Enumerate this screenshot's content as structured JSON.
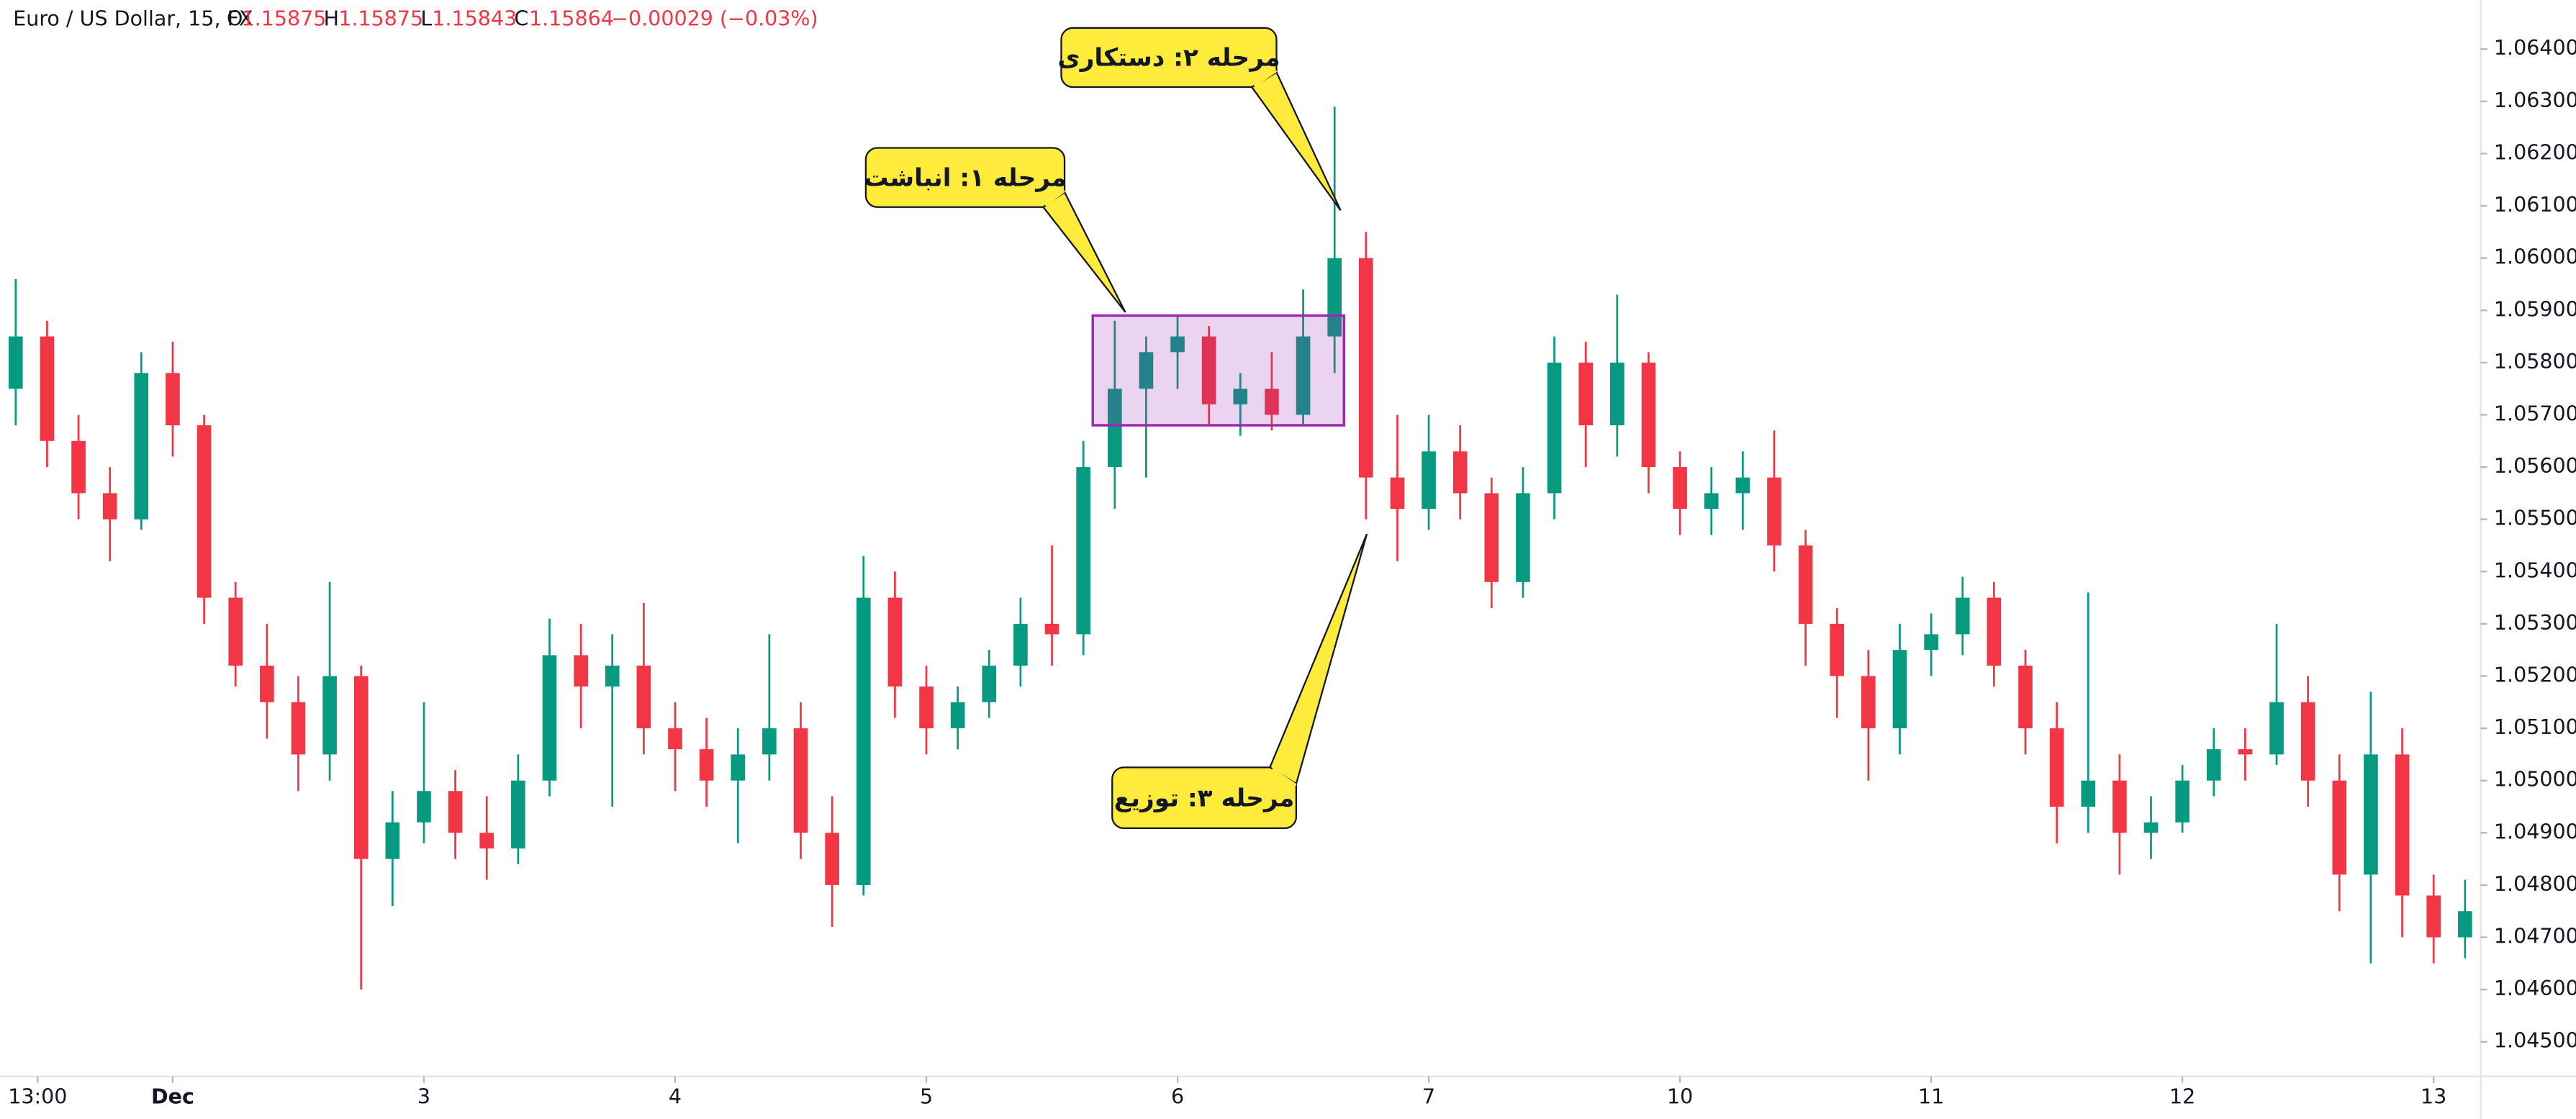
{
  "header": {
    "symbol": "Euro / US Dollar, 15, FX",
    "open_label": "O",
    "open": "1.15875",
    "high_label": "H",
    "high": "1.15875",
    "low_label": "L",
    "low": "1.15843",
    "close_label": "C",
    "close": "1.15864",
    "change": "−0.00029 (−0.03%)"
  },
  "chart_data": {
    "type": "candlestick",
    "up_color": "#089981",
    "down_color": "#f23645",
    "open": [
      1.0575,
      1.0585,
      1.0565,
      1.0555,
      1.055,
      1.0578,
      1.0568,
      1.0535,
      1.0522,
      1.0515,
      1.0505,
      1.052,
      1.0485,
      1.0492,
      1.0498,
      1.049,
      1.0487,
      1.05,
      1.0524,
      1.0518,
      1.0522,
      1.051,
      1.0506,
      1.05,
      1.0505,
      1.051,
      1.049,
      1.048,
      1.0535,
      1.0518,
      1.051,
      1.0515,
      1.0522,
      1.053,
      1.0528,
      1.056,
      1.0575,
      1.0582,
      1.0585,
      1.0572,
      1.0575,
      1.057,
      1.0585,
      1.06,
      1.0558,
      1.0552,
      1.0563,
      1.0555,
      1.0538,
      1.0555,
      1.058,
      1.0568,
      1.058,
      1.056,
      1.0552,
      1.0555,
      1.0558,
      1.0545,
      1.053,
      1.052,
      1.051,
      1.0525,
      1.0528,
      1.0535,
      1.0522,
      1.051,
      1.0495,
      1.05,
      1.049,
      1.0492,
      1.05,
      1.0506,
      1.0505,
      1.0515,
      1.05,
      1.0482,
      1.0505,
      1.0478,
      1.047
    ],
    "high": [
      1.0596,
      1.0588,
      1.057,
      1.056,
      1.0582,
      1.0584,
      1.057,
      1.0538,
      1.053,
      1.052,
      1.0538,
      1.0522,
      1.0498,
      1.0515,
      1.0502,
      1.0497,
      1.0505,
      1.0531,
      1.053,
      1.0528,
      1.0534,
      1.0515,
      1.0512,
      1.051,
      1.0528,
      1.0515,
      1.0497,
      1.0543,
      1.054,
      1.0522,
      1.0518,
      1.0525,
      1.0535,
      1.0545,
      1.0565,
      1.0588,
      1.0585,
      1.0589,
      1.0587,
      1.0578,
      1.0582,
      1.0594,
      1.0629,
      1.0605,
      1.057,
      1.057,
      1.0568,
      1.0558,
      1.056,
      1.0585,
      1.0584,
      1.0593,
      1.0582,
      1.0563,
      1.056,
      1.0563,
      1.0567,
      1.0548,
      1.0533,
      1.0525,
      1.053,
      1.0532,
      1.0539,
      1.0538,
      1.0525,
      1.0515,
      1.0536,
      1.0505,
      1.0497,
      1.0503,
      1.051,
      1.051,
      1.053,
      1.052,
      1.0505,
      1.0517,
      1.051,
      1.0482,
      1.0481
    ],
    "low": [
      1.0568,
      1.056,
      1.055,
      1.0542,
      1.0548,
      1.0562,
      1.053,
      1.0518,
      1.0508,
      1.0498,
      1.05,
      1.046,
      1.0476,
      1.0488,
      1.0485,
      1.0481,
      1.0484,
      1.0497,
      1.051,
      1.0495,
      1.0505,
      1.0498,
      1.0495,
      1.0488,
      1.05,
      1.0485,
      1.0472,
      1.0478,
      1.0512,
      1.0505,
      1.0506,
      1.0512,
      1.0518,
      1.0522,
      1.0524,
      1.0552,
      1.0558,
      1.0575,
      1.0568,
      1.0566,
      1.0567,
      1.0568,
      1.0578,
      1.055,
      1.0542,
      1.0548,
      1.055,
      1.0533,
      1.0535,
      1.055,
      1.056,
      1.0562,
      1.0555,
      1.0547,
      1.0547,
      1.0548,
      1.054,
      1.0522,
      1.0512,
      1.05,
      1.0505,
      1.052,
      1.0524,
      1.0518,
      1.0505,
      1.0488,
      1.049,
      1.0482,
      1.0485,
      1.049,
      1.0497,
      1.05,
      1.0503,
      1.0495,
      1.0475,
      1.0465,
      1.047,
      1.0465,
      1.0466
    ],
    "close": [
      1.0585,
      1.0565,
      1.0555,
      1.055,
      1.0578,
      1.0568,
      1.0535,
      1.0522,
      1.0515,
      1.0505,
      1.052,
      1.0485,
      1.0492,
      1.0498,
      1.049,
      1.0487,
      1.05,
      1.0524,
      1.0518,
      1.0522,
      1.051,
      1.0506,
      1.05,
      1.0505,
      1.051,
      1.049,
      1.048,
      1.0535,
      1.0518,
      1.051,
      1.0515,
      1.0522,
      1.053,
      1.0528,
      1.056,
      1.0575,
      1.0582,
      1.0585,
      1.0572,
      1.0575,
      1.057,
      1.0585,
      1.06,
      1.0558,
      1.0552,
      1.0563,
      1.0555,
      1.0538,
      1.0555,
      1.058,
      1.0568,
      1.058,
      1.056,
      1.0552,
      1.0555,
      1.0558,
      1.0545,
      1.053,
      1.052,
      1.051,
      1.0525,
      1.0528,
      1.0535,
      1.0522,
      1.051,
      1.0495,
      1.05,
      1.049,
      1.0492,
      1.05,
      1.0506,
      1.0505,
      1.0515,
      1.05,
      1.0482,
      1.0505,
      1.0478,
      1.047,
      1.0475
    ],
    "xlim": [
      0,
      79
    ],
    "xticks": [
      {
        "value": 1.2,
        "label": "13:00"
      },
      {
        "value": 5.5,
        "label": "Dec"
      },
      {
        "value": 13.5,
        "label": "3"
      },
      {
        "value": 21.5,
        "label": "4"
      },
      {
        "value": 29.5,
        "label": "5"
      },
      {
        "value": 37.5,
        "label": "6"
      },
      {
        "value": 45.5,
        "label": "7"
      },
      {
        "value": 53.5,
        "label": "10"
      },
      {
        "value": 61.5,
        "label": "11"
      },
      {
        "value": 69.5,
        "label": "12"
      },
      {
        "value": 77.5,
        "label": "13"
      }
    ],
    "ylim": [
      1.04434,
      1.06494
    ],
    "yticks": [
      {
        "value": 1.045,
        "label": "1.04500"
      },
      {
        "value": 1.046,
        "label": "1.04600"
      },
      {
        "value": 1.047,
        "label": "1.04700"
      },
      {
        "value": 1.048,
        "label": "1.04800"
      },
      {
        "value": 1.049,
        "label": "1.04900"
      },
      {
        "value": 1.05,
        "label": "1.05000"
      },
      {
        "value": 1.051,
        "label": "1.05100"
      },
      {
        "value": 1.052,
        "label": "1.05200"
      },
      {
        "value": 1.053,
        "label": "1.05300"
      },
      {
        "value": 1.054,
        "label": "1.05400"
      },
      {
        "value": 1.055,
        "label": "1.05500"
      },
      {
        "value": 1.056,
        "label": "1.05600"
      },
      {
        "value": 1.057,
        "label": "1.05700"
      },
      {
        "value": 1.058,
        "label": "1.05800"
      },
      {
        "value": 1.059,
        "label": "1.05900"
      },
      {
        "value": 1.06,
        "label": "1.06000"
      },
      {
        "value": 1.061,
        "label": "1.06100"
      },
      {
        "value": 1.062,
        "label": "1.06200"
      },
      {
        "value": 1.063,
        "label": "1.06300"
      },
      {
        "value": 1.064,
        "label": "1.06400"
      }
    ],
    "box": {
      "x": [
        34.8,
        42.8
      ],
      "y": [
        1.0568,
        1.0589
      ],
      "color": "#9c27b0"
    },
    "annotations": [
      {
        "text": "مرحله ۱: انباشت"
      },
      {
        "text": "مرحله ۲: دستکاری"
      },
      {
        "text": "مرحله ۳: توزیع"
      }
    ]
  }
}
